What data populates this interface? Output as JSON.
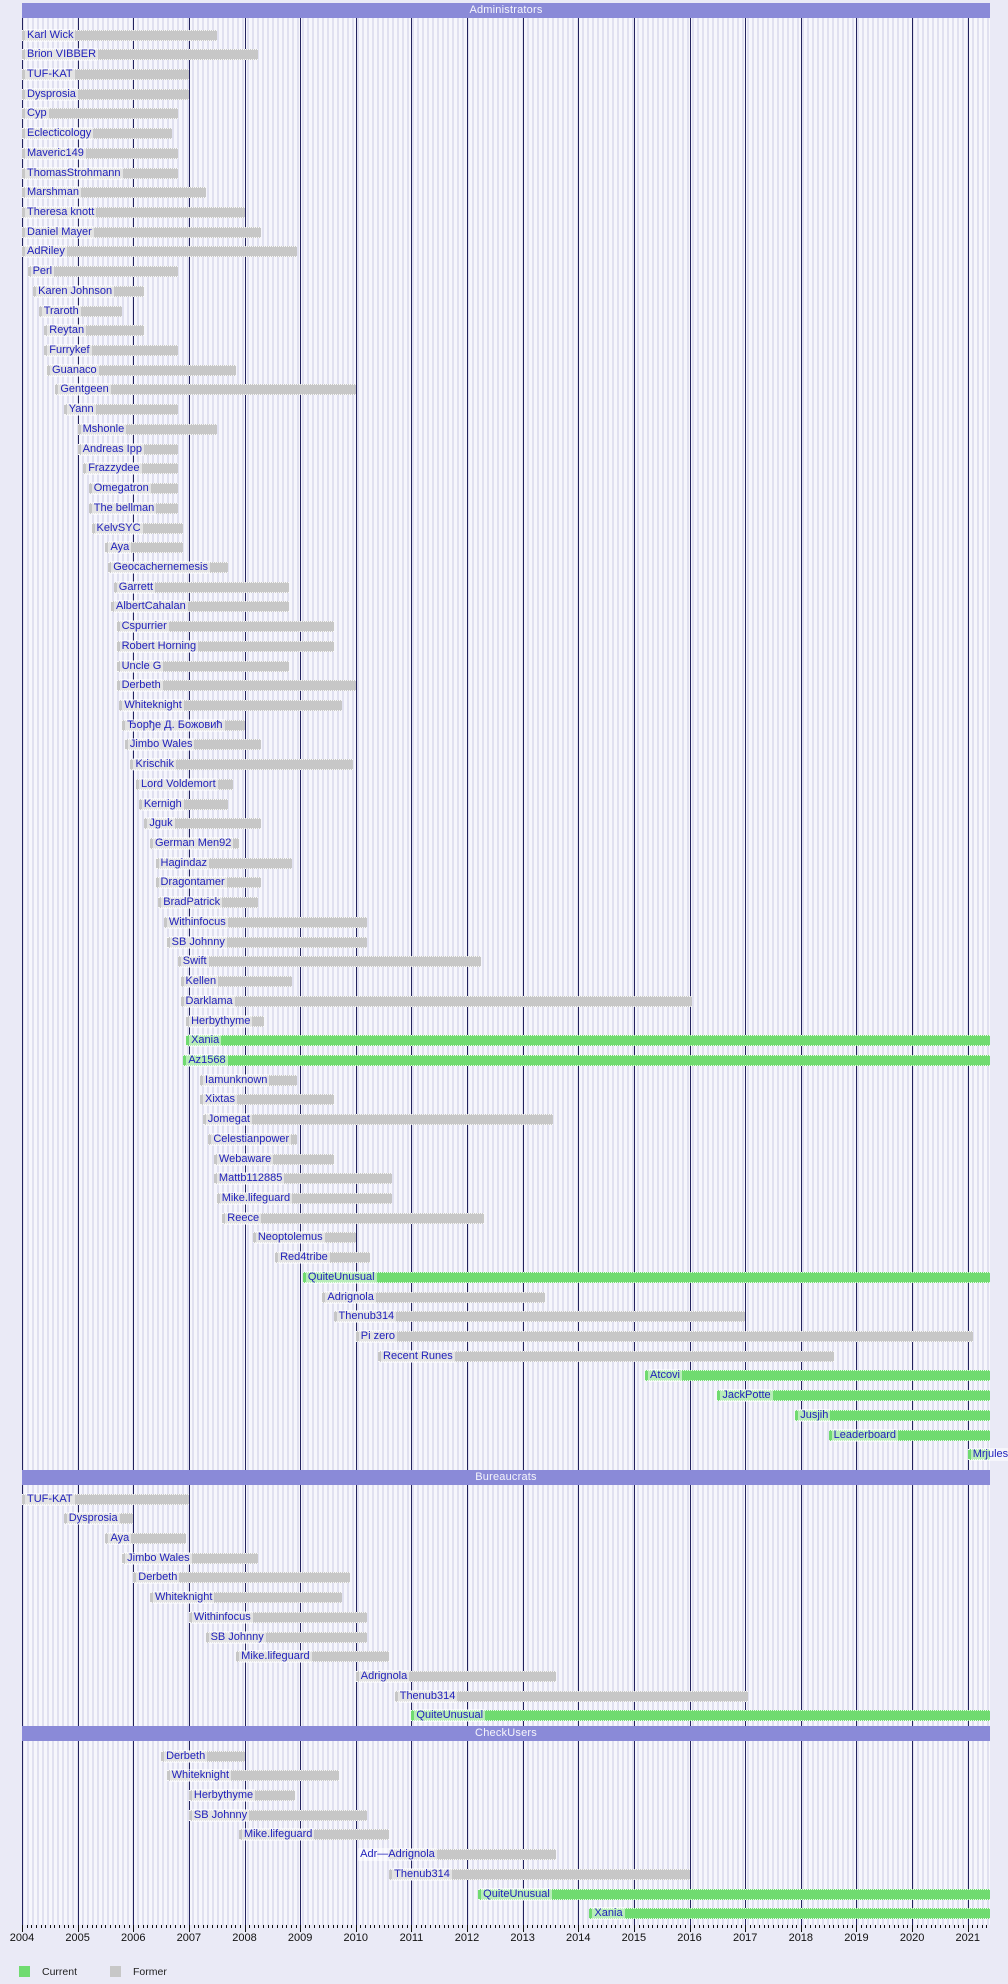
{
  "chart_data": {
    "type": "timeline-gantt",
    "title_sections": [
      "Administrators",
      "Bureaucrats",
      "CheckUsers"
    ],
    "xlim": [
      2004,
      2021.45
    ],
    "x_ticks": [
      "2004",
      "2005",
      "2006",
      "2007",
      "2008",
      "2009",
      "2010",
      "2011",
      "2012",
      "2013",
      "2014",
      "2015",
      "2016",
      "2017",
      "2018",
      "2019",
      "2020",
      "2021"
    ],
    "grid": true,
    "legend_position": "bottom-left",
    "legend": {
      "current_label": "Current",
      "former_label": "Former"
    },
    "colors": {
      "current": "#70db70",
      "former": "#c7c7c7",
      "band": "#8a8ad8",
      "label_text": "#2121bb",
      "gridline": "#23235e",
      "page_bg": "#eaeaf6"
    },
    "sections": [
      {
        "title": "Administrators",
        "rows": [
          {
            "name": "Karl Wick",
            "start": 2004.0,
            "end": 2007.5,
            "status": "former"
          },
          {
            "name": "Brion VIBBER",
            "start": 2004.0,
            "end": 2008.25,
            "status": "former"
          },
          {
            "name": "TUF-KAT",
            "start": 2004.0,
            "end": 2007.0,
            "status": "former"
          },
          {
            "name": "Dysprosia",
            "start": 2004.0,
            "end": 2007.0,
            "status": "former"
          },
          {
            "name": "Cyp",
            "start": 2004.0,
            "end": 2006.8,
            "status": "former"
          },
          {
            "name": "Eclecticology",
            "start": 2004.0,
            "end": 2006.7,
            "status": "former"
          },
          {
            "name": "Maveric149",
            "start": 2004.0,
            "end": 2006.8,
            "status": "former"
          },
          {
            "name": "ThomasStrohmann",
            "start": 2004.0,
            "end": 2006.8,
            "status": "former"
          },
          {
            "name": "Marshman",
            "start": 2004.0,
            "end": 2007.3,
            "status": "former"
          },
          {
            "name": "Theresa knott",
            "start": 2004.0,
            "end": 2008.0,
            "status": "former"
          },
          {
            "name": "Daniel Mayer",
            "start": 2004.0,
            "end": 2008.3,
            "status": "former"
          },
          {
            "name": "AdRiley",
            "start": 2004.0,
            "end": 2008.95,
            "status": "former"
          },
          {
            "name": "Perl",
            "start": 2004.1,
            "end": 2006.8,
            "status": "former"
          },
          {
            "name": "Karen Johnson",
            "start": 2004.2,
            "end": 2006.2,
            "status": "former"
          },
          {
            "name": "Traroth",
            "start": 2004.3,
            "end": 2005.8,
            "status": "former"
          },
          {
            "name": "Reytan",
            "start": 2004.4,
            "end": 2006.2,
            "status": "former"
          },
          {
            "name": "Furrykef",
            "start": 2004.4,
            "end": 2006.8,
            "status": "former"
          },
          {
            "name": "Guanaco",
            "start": 2004.45,
            "end": 2007.85,
            "status": "former"
          },
          {
            "name": "Gentgeen",
            "start": 2004.6,
            "end": 2010.0,
            "status": "former"
          },
          {
            "name": "Yann",
            "start": 2004.75,
            "end": 2006.8,
            "status": "former"
          },
          {
            "name": "Mshonle",
            "start": 2005.0,
            "end": 2007.5,
            "status": "former"
          },
          {
            "name": "Andreas Ipp",
            "start": 2005.0,
            "end": 2006.8,
            "status": "former"
          },
          {
            "name": "Frazzydee",
            "start": 2005.1,
            "end": 2006.8,
            "status": "former"
          },
          {
            "name": "Omegatron",
            "start": 2005.2,
            "end": 2006.8,
            "status": "former"
          },
          {
            "name": "The bellman",
            "start": 2005.2,
            "end": 2006.8,
            "status": "former"
          },
          {
            "name": "KelvSYC",
            "start": 2005.25,
            "end": 2006.9,
            "status": "former"
          },
          {
            "name": "Aya",
            "start": 2005.5,
            "end": 2006.9,
            "status": "former"
          },
          {
            "name": "Geocachernemesis",
            "start": 2005.55,
            "end": 2007.7,
            "status": "former"
          },
          {
            "name": "Garrett",
            "start": 2005.65,
            "end": 2008.8,
            "status": "former"
          },
          {
            "name": "AlbertCahalan",
            "start": 2005.6,
            "end": 2008.8,
            "status": "former"
          },
          {
            "name": "Cspurrier",
            "start": 2005.7,
            "end": 2009.6,
            "status": "former"
          },
          {
            "name": "Robert Horning",
            "start": 2005.7,
            "end": 2009.6,
            "status": "former"
          },
          {
            "name": "Uncle G",
            "start": 2005.7,
            "end": 2008.8,
            "status": "former"
          },
          {
            "name": "Derbeth",
            "start": 2005.7,
            "end": 2010.0,
            "status": "former"
          },
          {
            "name": "Whiteknight",
            "start": 2005.75,
            "end": 2009.75,
            "status": "former"
          },
          {
            "name": "Ђорђе Д. Божовић",
            "start": 2005.8,
            "end": 2008.0,
            "status": "former"
          },
          {
            "name": "Jimbo Wales",
            "start": 2005.85,
            "end": 2008.3,
            "status": "former"
          },
          {
            "name": "Krischik",
            "start": 2005.95,
            "end": 2009.95,
            "status": "former"
          },
          {
            "name": "Lord Voldemort",
            "start": 2006.05,
            "end": 2007.8,
            "status": "former"
          },
          {
            "name": "Kernigh",
            "start": 2006.1,
            "end": 2007.7,
            "status": "former"
          },
          {
            "name": "Jguk",
            "start": 2006.2,
            "end": 2008.3,
            "status": "former"
          },
          {
            "name": "German Men92",
            "start": 2006.3,
            "end": 2007.9,
            "status": "former"
          },
          {
            "name": "Hagindaz",
            "start": 2006.4,
            "end": 2008.85,
            "status": "former"
          },
          {
            "name": "Dragontamer",
            "start": 2006.4,
            "end": 2008.3,
            "status": "former"
          },
          {
            "name": "BradPatrick",
            "start": 2006.45,
            "end": 2008.25,
            "status": "former"
          },
          {
            "name": "Withinfocus",
            "start": 2006.55,
            "end": 2010.2,
            "status": "former"
          },
          {
            "name": "SB Johnny",
            "start": 2006.6,
            "end": 2010.2,
            "status": "former"
          },
          {
            "name": "Swift",
            "start": 2006.8,
            "end": 2012.25,
            "status": "former"
          },
          {
            "name": "Kellen",
            "start": 2006.85,
            "end": 2008.85,
            "status": "former"
          },
          {
            "name": "Darklama",
            "start": 2006.85,
            "end": 2016.05,
            "status": "former"
          },
          {
            "name": "Herbythyme",
            "start": 2006.95,
            "end": 2008.35,
            "status": "former"
          },
          {
            "name": "Xania",
            "start": 2006.95,
            "end": null,
            "status": "current"
          },
          {
            "name": "Az1568",
            "start": 2006.9,
            "end": null,
            "status": "current"
          },
          {
            "name": "Iamunknown",
            "start": 2007.2,
            "end": 2008.95,
            "status": "former"
          },
          {
            "name": "Xixtas",
            "start": 2007.2,
            "end": 2009.6,
            "status": "former"
          },
          {
            "name": "Jomegat",
            "start": 2007.25,
            "end": 2013.55,
            "status": "former"
          },
          {
            "name": "Celestianpower",
            "start": 2007.35,
            "end": 2008.95,
            "status": "former"
          },
          {
            "name": "Webaware",
            "start": 2007.45,
            "end": 2009.6,
            "status": "former"
          },
          {
            "name": "Mattb112885",
            "start": 2007.45,
            "end": 2010.65,
            "status": "former"
          },
          {
            "name": "Mike.lifeguard",
            "start": 2007.5,
            "end": 2010.65,
            "status": "former"
          },
          {
            "name": "Reece",
            "start": 2007.6,
            "end": 2012.3,
            "status": "former"
          },
          {
            "name": "Neoptolemus",
            "start": 2008.15,
            "end": 2010.0,
            "status": "former"
          },
          {
            "name": "Red4tribe",
            "start": 2008.55,
            "end": 2010.25,
            "status": "former"
          },
          {
            "name": "QuiteUnusual",
            "start": 2009.05,
            "end": null,
            "status": "current"
          },
          {
            "name": "Adrignola",
            "start": 2009.4,
            "end": 2013.4,
            "status": "former"
          },
          {
            "name": "Thenub314",
            "start": 2009.6,
            "end": 2017.0,
            "status": "former"
          },
          {
            "name": "Pi zero",
            "start": 2010.0,
            "end": 2021.1,
            "status": "former"
          },
          {
            "name": "Recent Runes",
            "start": 2010.4,
            "end": 2018.6,
            "status": "former"
          },
          {
            "name": "Atcovi",
            "start": 2015.2,
            "end": null,
            "status": "current"
          },
          {
            "name": "JackPotte",
            "start": 2016.5,
            "end": null,
            "status": "current"
          },
          {
            "name": "Jusjih",
            "start": 2017.9,
            "end": null,
            "status": "current"
          },
          {
            "name": "Leaderboard",
            "start": 2018.5,
            "end": null,
            "status": "current"
          },
          {
            "name": "Mrjulesd",
            "start": 2021.0,
            "end": null,
            "status": "current"
          }
        ]
      },
      {
        "title": "Bureaucrats",
        "rows": [
          {
            "name": "TUF-KAT",
            "start": 2004.0,
            "end": 2007.0,
            "status": "former"
          },
          {
            "name": "Dysprosia",
            "start": 2004.75,
            "end": 2006.0,
            "status": "former"
          },
          {
            "name": "Aya",
            "start": 2005.5,
            "end": 2006.95,
            "status": "former"
          },
          {
            "name": "Jimbo Wales",
            "start": 2005.8,
            "end": 2008.25,
            "status": "former"
          },
          {
            "name": "Derbeth",
            "start": 2006.0,
            "end": 2009.9,
            "status": "former"
          },
          {
            "name": "Whiteknight",
            "start": 2006.3,
            "end": 2009.75,
            "status": "former"
          },
          {
            "name": "Withinfocus",
            "start": 2007.0,
            "end": 2010.2,
            "status": "former"
          },
          {
            "name": "SB Johnny",
            "start": 2007.3,
            "end": 2010.2,
            "status": "former"
          },
          {
            "name": "Mike.lifeguard",
            "start": 2007.85,
            "end": 2010.6,
            "status": "former"
          },
          {
            "name": "Adrignola",
            "start": 2010.0,
            "end": 2013.6,
            "status": "former"
          },
          {
            "name": "Thenub314",
            "start": 2010.7,
            "end": 2017.05,
            "status": "former"
          },
          {
            "name": "QuiteUnusual",
            "start": 2011.0,
            "end": null,
            "status": "current"
          }
        ]
      },
      {
        "title": "CheckUsers",
        "rows": [
          {
            "name": "Derbeth",
            "start": 2006.5,
            "end": 2008.0,
            "status": "former"
          },
          {
            "name": "Whiteknight",
            "start": 2006.6,
            "end": 2009.7,
            "status": "former"
          },
          {
            "name": "Herbythyme",
            "start": 2007.0,
            "end": 2008.9,
            "status": "former"
          },
          {
            "name": "SB Johnny",
            "start": 2007.0,
            "end": 2010.2,
            "status": "former"
          },
          {
            "name": "Mike.lifeguard",
            "start": 2007.9,
            "end": 2010.6,
            "status": "former"
          },
          {
            "name": "Adr—Adrignola",
            "start": 2010.6,
            "end": 2013.6,
            "status": "former",
            "label_dx": -34
          },
          {
            "name": "Thenub314",
            "start": 2010.6,
            "end": 2016.0,
            "status": "former"
          },
          {
            "name": "QuiteUnusual",
            "start": 2012.2,
            "end": null,
            "status": "current"
          },
          {
            "name": "Xania",
            "start": 2014.2,
            "end": null,
            "status": "current"
          }
        ]
      }
    ]
  }
}
